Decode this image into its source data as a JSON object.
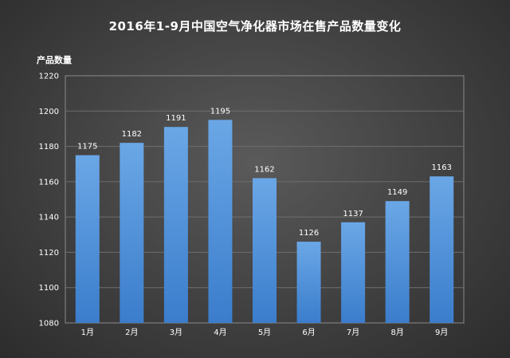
{
  "chart_data": {
    "type": "bar",
    "title": "2016年1-9月中国空气净化器市场在售产品数量变化",
    "xlabel": "",
    "ylabel": "产品数量",
    "categories": [
      "1月",
      "2月",
      "3月",
      "4月",
      "5月",
      "6月",
      "7月",
      "8月",
      "9月"
    ],
    "values": [
      1175,
      1182,
      1191,
      1195,
      1162,
      1126,
      1137,
      1149,
      1163
    ],
    "ylim": [
      1080,
      1220
    ],
    "yticks": [
      1080,
      1100,
      1120,
      1140,
      1160,
      1180,
      1200,
      1220
    ],
    "grid": true,
    "bar_color": "#4f8fd8"
  }
}
